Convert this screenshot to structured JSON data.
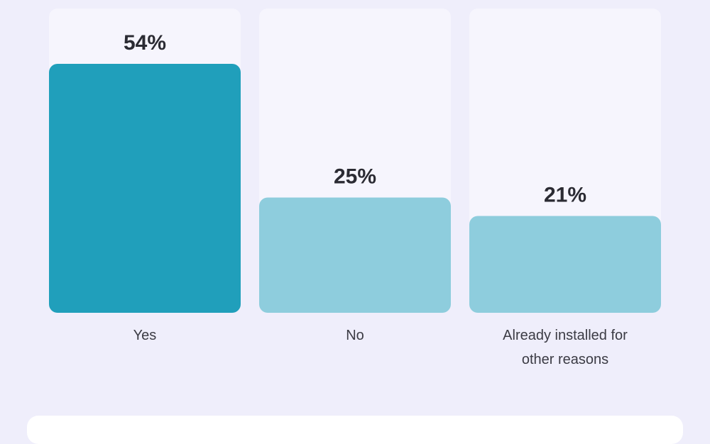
{
  "chart_data": {
    "type": "bar",
    "categories": [
      [
        "Yes"
      ],
      [
        "No"
      ],
      [
        "Already installed for",
        "other reasons"
      ]
    ],
    "values": [
      54,
      25,
      21
    ],
    "value_labels": [
      "54%",
      "25%",
      "21%"
    ],
    "ylim": [
      0,
      100
    ],
    "grid": false,
    "legend": "none",
    "title": "",
    "xlabel": "",
    "ylabel": ""
  },
  "colors": {
    "background": "#efeefb",
    "track": "#f6f5fd",
    "bar_highlight": "#209fbb",
    "bar_default": "#8ecddd",
    "value_text": "#2b2b33",
    "label_text": "#3b3b44",
    "card": "#ffffff"
  }
}
